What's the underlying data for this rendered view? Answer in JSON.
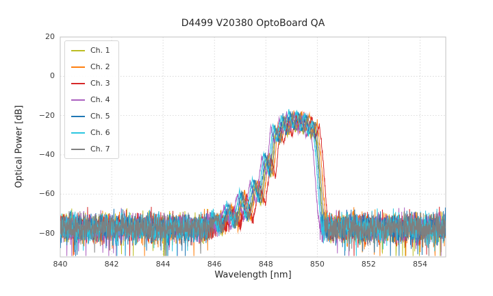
{
  "chart_data": {
    "type": "line",
    "title": "D4499 V20380 OptoBoard QA",
    "xlabel": "Wavelength [nm]",
    "ylabel": "Optical Power [dB]",
    "xlim": [
      840,
      855
    ],
    "ylim": [
      -92,
      20
    ],
    "xticks": [
      840,
      842,
      844,
      846,
      848,
      850,
      852,
      854
    ],
    "yticks": [
      20,
      0,
      -20,
      -40,
      -60,
      -80
    ],
    "grid": true,
    "legend_position": "upper left",
    "description": "Optical spectra of 7 laser channels: flat noise floor near -75 dB across 840-855 nm, multimode emission envelope rising from ~846 nm to a main lobe between ~848.3 and ~850 nm peaking near -18 dB, then falling back to the noise floor by ~850.4 nm.",
    "noise_floor_db": -75,
    "peak_db": -18,
    "peak_wavelength_nm": 849.1,
    "envelope_points": [
      [
        845.6,
        -95
      ],
      [
        846.0,
        -72
      ],
      [
        846.25,
        -85
      ],
      [
        846.55,
        -66
      ],
      [
        846.8,
        -80
      ],
      [
        847.05,
        -59
      ],
      [
        847.3,
        -74
      ],
      [
        847.55,
        -53
      ],
      [
        847.78,
        -64
      ],
      [
        848.0,
        -40
      ],
      [
        848.18,
        -50
      ],
      [
        848.35,
        -25
      ],
      [
        848.5,
        -33
      ],
      [
        848.68,
        -20.5
      ],
      [
        848.82,
        -29
      ],
      [
        848.97,
        -18.5
      ],
      [
        849.12,
        -27
      ],
      [
        849.28,
        -18.5
      ],
      [
        849.42,
        -28
      ],
      [
        849.58,
        -19.5
      ],
      [
        849.72,
        -30
      ],
      [
        849.88,
        -23
      ],
      [
        850.02,
        -40
      ],
      [
        850.18,
        -70
      ],
      [
        850.35,
        -100
      ]
    ],
    "series": [
      {
        "name": "Ch. 1",
        "color": "#bcbd22",
        "dx": 0.02,
        "dy": -1
      },
      {
        "name": "Ch. 2",
        "color": "#ff7f0e",
        "dx": 0.12,
        "dy": 0
      },
      {
        "name": "Ch. 3",
        "color": "#d62728",
        "dx": 0.2,
        "dy": -1.5
      },
      {
        "name": "Ch. 4",
        "color": "#ab5fbf",
        "dx": -0.16,
        "dy": -0.5
      },
      {
        "name": "Ch. 5",
        "color": "#1f77b4",
        "dx": -0.02,
        "dy": 0
      },
      {
        "name": "Ch. 6",
        "color": "#2ac6e0",
        "dx": -0.08,
        "dy": 0.5
      },
      {
        "name": "Ch. 7",
        "color": "#7f7f7f",
        "dx": 0.06,
        "dy": -0.5
      }
    ],
    "noise": {
      "mean": -77,
      "sigma": 3.5,
      "spike_prob": 0.02,
      "spike_extra_db": 12
    },
    "sample_step_nm": 0.008,
    "seed": 42
  }
}
